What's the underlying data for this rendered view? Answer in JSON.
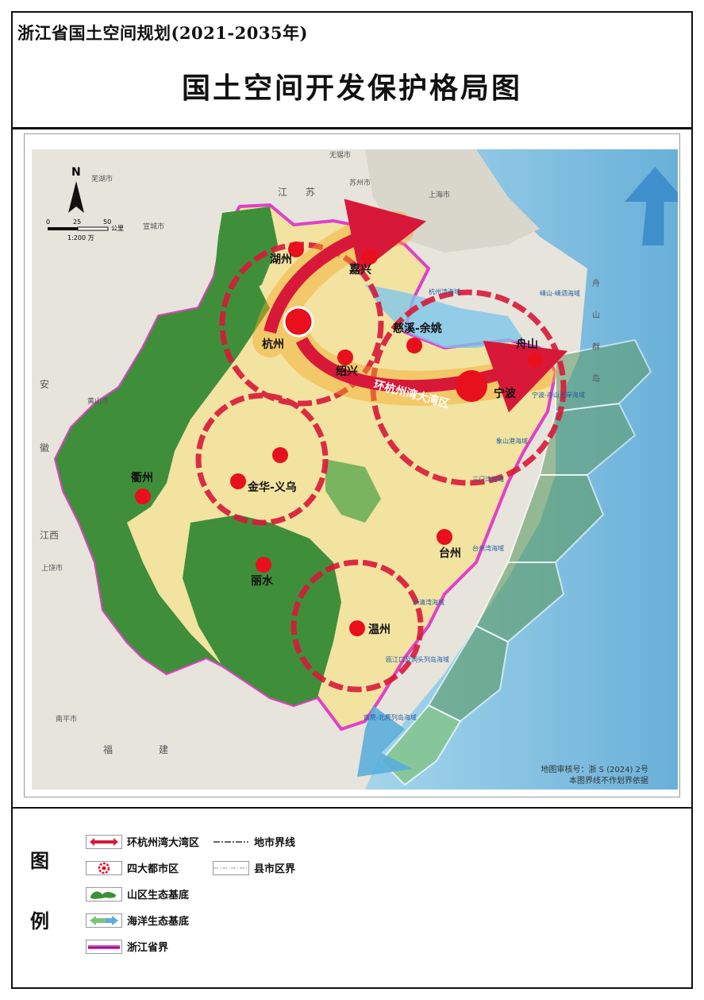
{
  "header": {
    "plan_title": "浙江省国土空间规划(2021-2035年)",
    "map_title": "国土空间开发保护格局图"
  },
  "map": {
    "north_label": "N",
    "scale": {
      "ticks": [
        "0",
        "25",
        "50"
      ],
      "unit": "公里",
      "ratio": "1:200 万"
    },
    "cities": [
      {
        "id": "huzhou",
        "label": "湖州"
      },
      {
        "id": "jiaxing",
        "label": "嘉兴"
      },
      {
        "id": "hangzhou",
        "label": "杭州"
      },
      {
        "id": "shaoxing",
        "label": "绍兴"
      },
      {
        "id": "cixi",
        "label": "慈溪-余姚"
      },
      {
        "id": "zhoushan",
        "label": "舟山"
      },
      {
        "id": "ningbo",
        "label": "宁波"
      },
      {
        "id": "quzhou",
        "label": "衢州"
      },
      {
        "id": "jinhua",
        "label": "金华-义乌"
      },
      {
        "id": "taizhou",
        "label": "台州"
      },
      {
        "id": "lishui",
        "label": "丽水"
      },
      {
        "id": "wenzhou",
        "label": "温州"
      }
    ],
    "bay_area_label": "环杭州湾大湾区",
    "neighbors": [
      "无锡市",
      "芜湖市",
      "苏州市",
      "上海市",
      "宣城市",
      "黄山市",
      "上饶市",
      "南平市",
      "江",
      "苏",
      "安",
      "徽",
      "福",
      "建",
      "江西",
      "舟",
      "山",
      "群",
      "岛"
    ],
    "sea_zones": [
      "杭州湾海域",
      "嵊山-嵊泗海域",
      "宁波-舟山近岸海域",
      "象山港海域",
      "三门湾海域",
      "台州湾海域",
      "乐清湾海域",
      "瓯江口及洞头列岛海域",
      "南麂-北麂列岛海域"
    ],
    "approval_no": "地图审核号：浙 S (2024) 2号",
    "approval_note": "本图界线不作划界依据"
  },
  "legend": {
    "heading_1": "图",
    "heading_2": "例",
    "items": [
      {
        "label": "环杭州湾大湾区",
        "icon": "bay-arrow-icon"
      },
      {
        "label": "四大都市区",
        "icon": "metro-ring-icon"
      },
      {
        "label": "山区生态基底",
        "icon": "mountain-green-icon"
      },
      {
        "label": "海洋生态基底",
        "icon": "ocean-arrow-icon"
      },
      {
        "label": "浙江省界",
        "icon": "province-border-icon"
      },
      {
        "label": "地市界线",
        "icon": "city-boundary-icon"
      },
      {
        "label": "县市区界",
        "icon": "county-boundary-icon"
      }
    ]
  },
  "colors": {
    "mountain_green": "#3f8f3a",
    "plain_yellow": "#f3e3a0",
    "ocean_blue": "#5aaedc",
    "city_red": "#e8101c",
    "province_border": "#e040c8",
    "bay_arrow": "#d81838",
    "bay_glow": "#f5a623",
    "sea_zone_green": "#5c9b63"
  }
}
